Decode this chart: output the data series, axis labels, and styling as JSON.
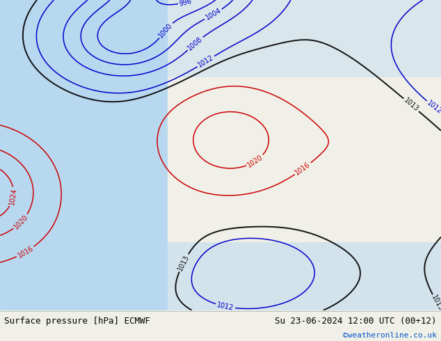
{
  "title_left": "Surface pressure [hPa] ECMWF",
  "title_right": "Su 23-06-2024 12:00 UTC (00+12)",
  "credit": "©weatheronline.co.uk",
  "bg_color": "#f0f0e8",
  "map_bg_land": "#a8c888",
  "map_bg_sea": "#b8d8f0",
  "contour_color_blue": "#0000cc",
  "contour_color_red": "#cc0000",
  "contour_color_black": "#111111",
  "label_fontsize": 7,
  "title_fontsize": 9,
  "credit_color": "#0055cc",
  "figsize": [
    6.34,
    4.9
  ],
  "dpi": 100
}
